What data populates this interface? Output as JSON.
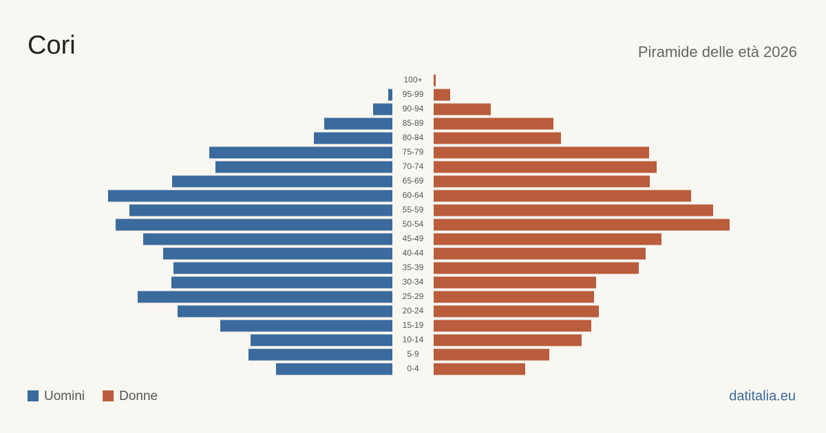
{
  "chart_data": {
    "type": "pyramid",
    "title": "Cori",
    "subtitle": "Piramide delle età 2026",
    "source": "datitalia.eu",
    "categories": [
      "100+",
      "95-99",
      "90-94",
      "85-89",
      "80-84",
      "75-79",
      "70-74",
      "65-69",
      "60-64",
      "55-59",
      "50-54",
      "45-49",
      "40-44",
      "35-39",
      "30-34",
      "25-29",
      "20-24",
      "15-19",
      "10-14",
      "5-9",
      "0-4"
    ],
    "series": [
      {
        "name": "Uomini",
        "color": "#3b6a9c",
        "values": [
          0,
          6,
          28,
          99,
          114,
          266,
          257,
          320,
          413,
          382,
          402,
          362,
          333,
          318,
          321,
          370,
          312,
          250,
          206,
          209,
          169
        ]
      },
      {
        "name": "Donne",
        "color": "#b95d3c",
        "values": [
          3,
          24,
          83,
          174,
          185,
          313,
          324,
          314,
          374,
          406,
          430,
          331,
          308,
          298,
          236,
          233,
          240,
          229,
          215,
          168,
          133
        ]
      }
    ]
  }
}
